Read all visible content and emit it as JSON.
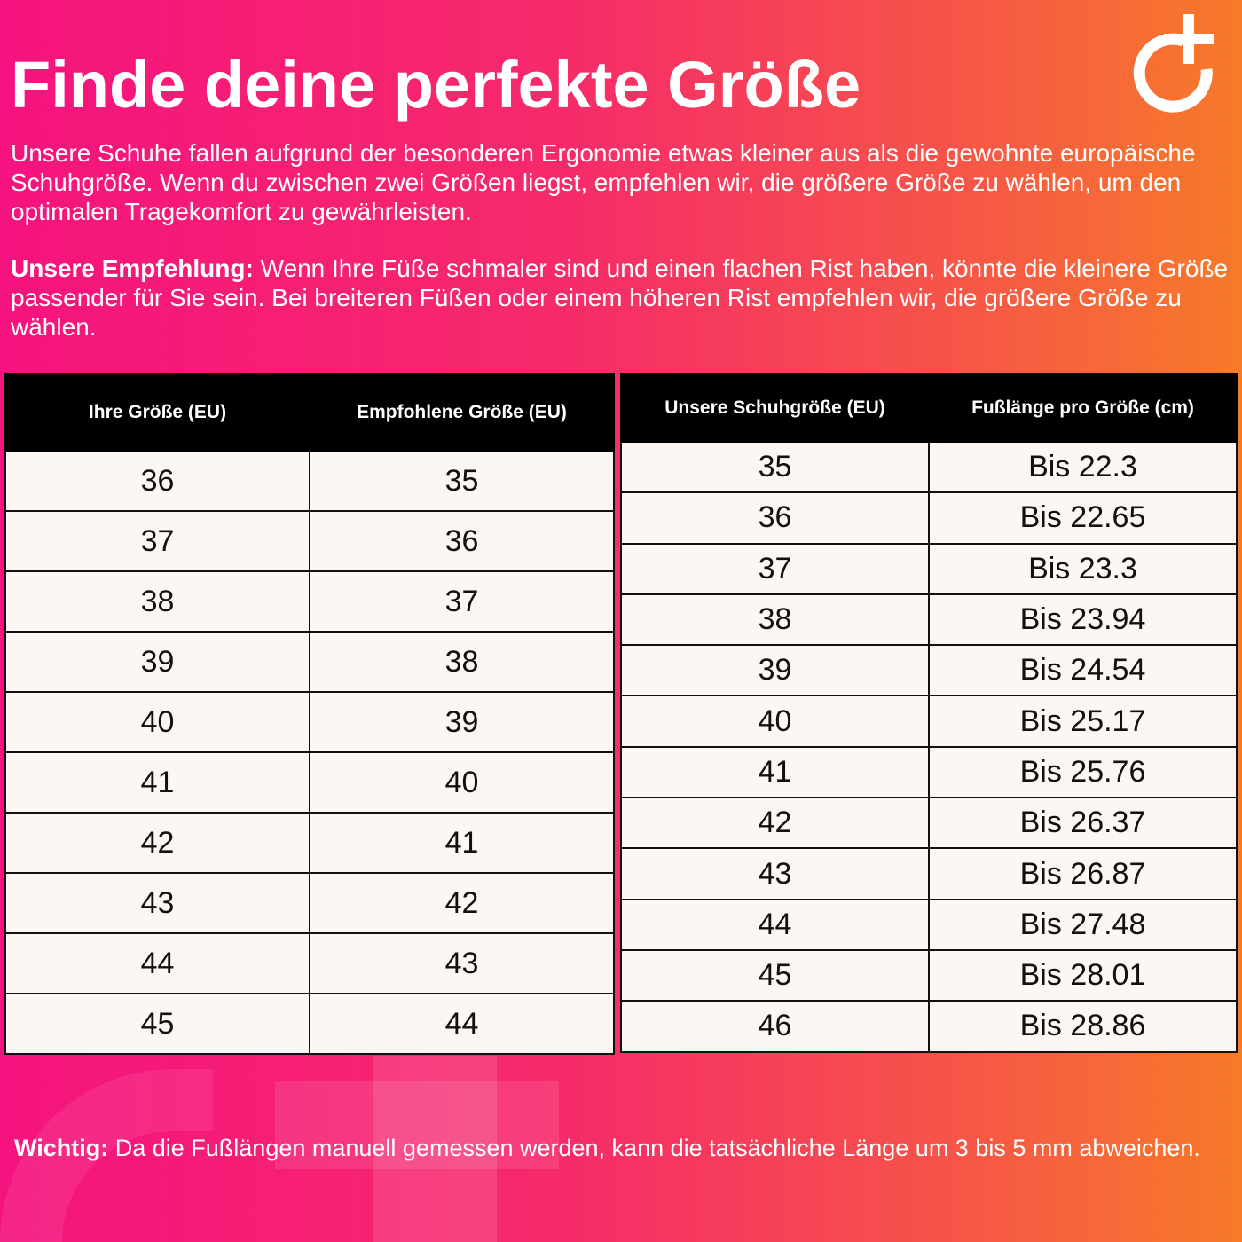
{
  "title": "Finde deine perfekte Größe",
  "logo": {
    "icon": "circle-plus-logo",
    "color": "#ffffff"
  },
  "intro": "Unsere Schuhe fallen aufgrund der besonderen Ergonomie etwas kleiner aus als die gewohnte europäische Schuhgröße. Wenn du zwischen zwei Größen liegst, empfehlen wir, die größere Größe zu wählen, um den optimalen Tragekomfort zu gewährleisten.",
  "recommendation": {
    "label": "Unsere Empfehlung:",
    "text": " Wenn Ihre Füße schmaler sind und einen flachen Rist haben, könnte die kleinere Größe passender für Sie sein. Bei breiteren Füßen oder einem höheren Rist empfehlen wir, die größere Größe zu wählen."
  },
  "table_left": {
    "headers": [
      "Ihre Größe (EU)",
      "Empfohlene Größe (EU)"
    ],
    "rows": [
      [
        "36",
        "35"
      ],
      [
        "37",
        "36"
      ],
      [
        "38",
        "37"
      ],
      [
        "39",
        "38"
      ],
      [
        "40",
        "39"
      ],
      [
        "41",
        "40"
      ],
      [
        "42",
        "41"
      ],
      [
        "43",
        "42"
      ],
      [
        "44",
        "43"
      ],
      [
        "45",
        "44"
      ]
    ]
  },
  "table_right": {
    "headers": [
      "Unsere Schuhgröße (EU)",
      "Fußlänge pro Größe (cm)"
    ],
    "rows": [
      [
        "35",
        "Bis 22.3"
      ],
      [
        "36",
        "Bis 22.65"
      ],
      [
        "37",
        "Bis 23.3"
      ],
      [
        "38",
        "Bis 23.94"
      ],
      [
        "39",
        "Bis 24.54"
      ],
      [
        "40",
        "Bis 25.17"
      ],
      [
        "41",
        "Bis 25.76"
      ],
      [
        "42",
        "Bis 26.37"
      ],
      [
        "43",
        "Bis 26.87"
      ],
      [
        "44",
        "Bis 27.48"
      ],
      [
        "45",
        "Bis 28.01"
      ],
      [
        "46",
        "Bis 28.86"
      ]
    ]
  },
  "note": {
    "label": "Wichtig:",
    "text": " Da die Fußlängen manuell gemessen werden, kann die tatsächliche Länge um 3 bis 5 mm abweichen."
  },
  "colors": {
    "gradient_left": "#f5137f",
    "gradient_right": "#f77a2a",
    "table_bg": "#fdf7f4",
    "header_bg": "#000000"
  }
}
